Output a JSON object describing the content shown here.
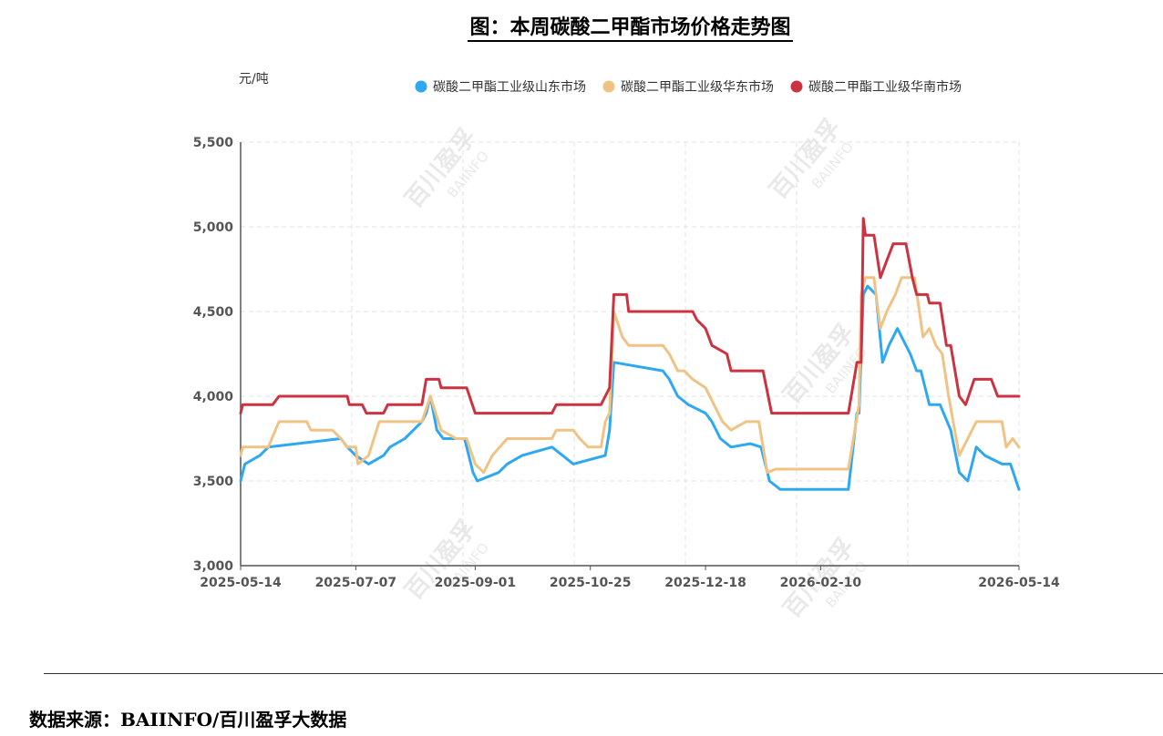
{
  "title": "图：本周碳酸二甲酯市场价格走势图",
  "source": "数据来源：BAIINFO/百川盈孚大数据",
  "watermark": {
    "cn": "百川盈孚",
    "en": "BAIINFO"
  },
  "chart_data": {
    "type": "line",
    "title": "图：本周碳酸二甲酯市场价格走势图",
    "ylabel": "元/吨",
    "xlabel": "",
    "ylim": [
      3000,
      5500
    ],
    "yticks": [
      3000,
      3500,
      4000,
      4500,
      5000,
      5500
    ],
    "ytick_labels": [
      "3,000",
      "3,500",
      "4,000",
      "4,500",
      "5,000",
      "5,500"
    ],
    "xlim": [
      "2025-05-14",
      "2026-05-14"
    ],
    "xticks": [
      "2025-05-14",
      "2025-07-07",
      "2025-09-01",
      "2025-10-25",
      "2025-12-18",
      "2026-02-10",
      "2026-05-14"
    ],
    "grid": true,
    "legend": "top",
    "series": [
      {
        "name": "碳酸二甲酯工业级山东市场",
        "color": "#2ea8f0",
        "points": [
          [
            "2025-05-14",
            3500
          ],
          [
            "2025-05-16",
            3600
          ],
          [
            "2025-05-23",
            3650
          ],
          [
            "2025-05-27",
            3700
          ],
          [
            "2025-06-30",
            3750
          ],
          [
            "2025-07-03",
            3700
          ],
          [
            "2025-07-07",
            3650
          ],
          [
            "2025-07-13",
            3600
          ],
          [
            "2025-07-20",
            3650
          ],
          [
            "2025-07-23",
            3700
          ],
          [
            "2025-07-30",
            3750
          ],
          [
            "2025-08-07",
            3850
          ],
          [
            "2025-08-09",
            3900
          ],
          [
            "2025-08-11",
            4000
          ],
          [
            "2025-08-14",
            3800
          ],
          [
            "2025-08-17",
            3750
          ],
          [
            "2025-08-27",
            3750
          ],
          [
            "2025-08-31",
            3550
          ],
          [
            "2025-09-02",
            3500
          ],
          [
            "2025-09-12",
            3550
          ],
          [
            "2025-09-16",
            3600
          ],
          [
            "2025-09-23",
            3650
          ],
          [
            "2025-10-07",
            3700
          ],
          [
            "2025-10-12",
            3650
          ],
          [
            "2025-10-17",
            3600
          ],
          [
            "2025-11-01",
            3650
          ],
          [
            "2025-11-03",
            3800
          ],
          [
            "2025-11-05",
            4200
          ],
          [
            "2025-11-28",
            4150
          ],
          [
            "2025-12-01",
            4100
          ],
          [
            "2025-12-05",
            4000
          ],
          [
            "2025-12-10",
            3950
          ],
          [
            "2025-12-18",
            3900
          ],
          [
            "2025-12-21",
            3850
          ],
          [
            "2025-12-25",
            3750
          ],
          [
            "2025-12-30",
            3700
          ],
          [
            "2026-01-08",
            3720
          ],
          [
            "2026-01-13",
            3700
          ],
          [
            "2026-01-17",
            3500
          ],
          [
            "2026-01-22",
            3450
          ],
          [
            "2026-02-23",
            3450
          ],
          [
            "2026-02-27",
            3900
          ],
          [
            "2026-02-28",
            3900
          ],
          [
            "2026-03-02",
            4600
          ],
          [
            "2026-03-04",
            4650
          ],
          [
            "2026-03-08",
            4600
          ],
          [
            "2026-03-11",
            4200
          ],
          [
            "2026-03-14",
            4300
          ],
          [
            "2026-03-18",
            4400
          ],
          [
            "2026-03-20",
            4350
          ],
          [
            "2026-03-24",
            4250
          ],
          [
            "2026-03-27",
            4150
          ],
          [
            "2026-03-29",
            4150
          ],
          [
            "2026-04-02",
            3950
          ],
          [
            "2026-04-07",
            3950
          ],
          [
            "2026-04-12",
            3800
          ],
          [
            "2026-04-16",
            3550
          ],
          [
            "2026-04-20",
            3500
          ],
          [
            "2026-04-24",
            3700
          ],
          [
            "2026-04-28",
            3650
          ],
          [
            "2026-05-06",
            3600
          ],
          [
            "2026-05-10",
            3600
          ],
          [
            "2026-05-14",
            3450
          ]
        ]
      },
      {
        "name": "碳酸二甲酯工业级华东市场",
        "color": "#f0c385",
        "points": [
          [
            "2025-05-14",
            3650
          ],
          [
            "2025-05-15",
            3700
          ],
          [
            "2025-05-27",
            3700
          ],
          [
            "2025-06-01",
            3850
          ],
          [
            "2025-06-14",
            3850
          ],
          [
            "2025-06-16",
            3800
          ],
          [
            "2025-06-26",
            3800
          ],
          [
            "2025-06-30",
            3750
          ],
          [
            "2025-07-03",
            3700
          ],
          [
            "2025-07-07",
            3700
          ],
          [
            "2025-07-08",
            3600
          ],
          [
            "2025-07-13",
            3650
          ],
          [
            "2025-07-18",
            3850
          ],
          [
            "2025-08-07",
            3850
          ],
          [
            "2025-08-11",
            4000
          ],
          [
            "2025-08-16",
            3800
          ],
          [
            "2025-08-23",
            3750
          ],
          [
            "2025-08-28",
            3750
          ],
          [
            "2025-09-01",
            3600
          ],
          [
            "2025-09-05",
            3550
          ],
          [
            "2025-09-09",
            3650
          ],
          [
            "2025-09-16",
            3750
          ],
          [
            "2025-10-07",
            3750
          ],
          [
            "2025-10-09",
            3800
          ],
          [
            "2025-10-17",
            3800
          ],
          [
            "2025-10-20",
            3750
          ],
          [
            "2025-10-24",
            3700
          ],
          [
            "2025-10-30",
            3700
          ],
          [
            "2025-11-01",
            3850
          ],
          [
            "2025-11-03",
            3900
          ],
          [
            "2025-11-05",
            4500
          ],
          [
            "2025-11-09",
            4350
          ],
          [
            "2025-11-12",
            4300
          ],
          [
            "2025-11-28",
            4300
          ],
          [
            "2025-12-01",
            4250
          ],
          [
            "2025-12-05",
            4150
          ],
          [
            "2025-12-08",
            4150
          ],
          [
            "2025-12-12",
            4100
          ],
          [
            "2025-12-18",
            4050
          ],
          [
            "2025-12-22",
            3950
          ],
          [
            "2025-12-26",
            3850
          ],
          [
            "2025-12-30",
            3800
          ],
          [
            "2026-01-06",
            3850
          ],
          [
            "2026-01-12",
            3850
          ],
          [
            "2026-01-16",
            3550
          ],
          [
            "2026-01-20",
            3570
          ],
          [
            "2026-02-23",
            3570
          ],
          [
            "2026-02-28",
            3950
          ],
          [
            "2026-03-01",
            4600
          ],
          [
            "2026-03-03",
            4700
          ],
          [
            "2026-03-07",
            4700
          ],
          [
            "2026-03-10",
            4400
          ],
          [
            "2026-03-13",
            4500
          ],
          [
            "2026-03-17",
            4600
          ],
          [
            "2026-03-20",
            4700
          ],
          [
            "2026-03-26",
            4700
          ],
          [
            "2026-03-30",
            4350
          ],
          [
            "2026-04-02",
            4400
          ],
          [
            "2026-04-05",
            4300
          ],
          [
            "2026-04-08",
            4250
          ],
          [
            "2026-04-11",
            4000
          ],
          [
            "2026-04-16",
            3650
          ],
          [
            "2026-04-20",
            3750
          ],
          [
            "2026-04-24",
            3850
          ],
          [
            "2026-05-06",
            3850
          ],
          [
            "2026-05-08",
            3700
          ],
          [
            "2026-05-11",
            3750
          ],
          [
            "2026-05-14",
            3700
          ]
        ]
      },
      {
        "name": "碳酸二甲酯工业级华南市场",
        "color": "#cc3340",
        "points": [
          [
            "2025-05-14",
            3900
          ],
          [
            "2025-05-15",
            3950
          ],
          [
            "2025-05-29",
            3950
          ],
          [
            "2025-06-01",
            4000
          ],
          [
            "2025-07-03",
            4000
          ],
          [
            "2025-07-04",
            3950
          ],
          [
            "2025-07-10",
            3950
          ],
          [
            "2025-07-12",
            3900
          ],
          [
            "2025-07-20",
            3900
          ],
          [
            "2025-07-22",
            3950
          ],
          [
            "2025-08-07",
            3950
          ],
          [
            "2025-08-09",
            4100
          ],
          [
            "2025-08-15",
            4100
          ],
          [
            "2025-08-16",
            4050
          ],
          [
            "2025-08-28",
            4050
          ],
          [
            "2025-09-01",
            3900
          ],
          [
            "2025-10-07",
            3900
          ],
          [
            "2025-10-09",
            3950
          ],
          [
            "2025-10-30",
            3950
          ],
          [
            "2025-11-01",
            4000
          ],
          [
            "2025-11-03",
            4050
          ],
          [
            "2025-11-05",
            4600
          ],
          [
            "2025-11-11",
            4600
          ],
          [
            "2025-11-12",
            4500
          ],
          [
            "2025-12-12",
            4500
          ],
          [
            "2025-12-14",
            4450
          ],
          [
            "2025-12-18",
            4400
          ],
          [
            "2025-12-21",
            4300
          ],
          [
            "2025-12-28",
            4250
          ],
          [
            "2025-12-30",
            4150
          ],
          [
            "2026-01-14",
            4150
          ],
          [
            "2026-01-18",
            3900
          ],
          [
            "2026-02-23",
            3900
          ],
          [
            "2026-02-27",
            4200
          ],
          [
            "2026-03-01",
            4200
          ],
          [
            "2026-03-02",
            5050
          ],
          [
            "2026-03-03",
            4950
          ],
          [
            "2026-03-07",
            4950
          ],
          [
            "2026-03-10",
            4700
          ],
          [
            "2026-03-13",
            4800
          ],
          [
            "2026-03-16",
            4900
          ],
          [
            "2026-03-22",
            4900
          ],
          [
            "2026-03-25",
            4700
          ],
          [
            "2026-03-27",
            4600
          ],
          [
            "2026-04-01",
            4600
          ],
          [
            "2026-04-02",
            4550
          ],
          [
            "2026-04-07",
            4550
          ],
          [
            "2026-04-10",
            4300
          ],
          [
            "2026-04-12",
            4300
          ],
          [
            "2026-04-16",
            4000
          ],
          [
            "2026-04-19",
            3950
          ],
          [
            "2026-04-23",
            4100
          ],
          [
            "2026-05-01",
            4100
          ],
          [
            "2026-05-04",
            4000
          ],
          [
            "2026-05-14",
            4000
          ]
        ]
      }
    ]
  }
}
